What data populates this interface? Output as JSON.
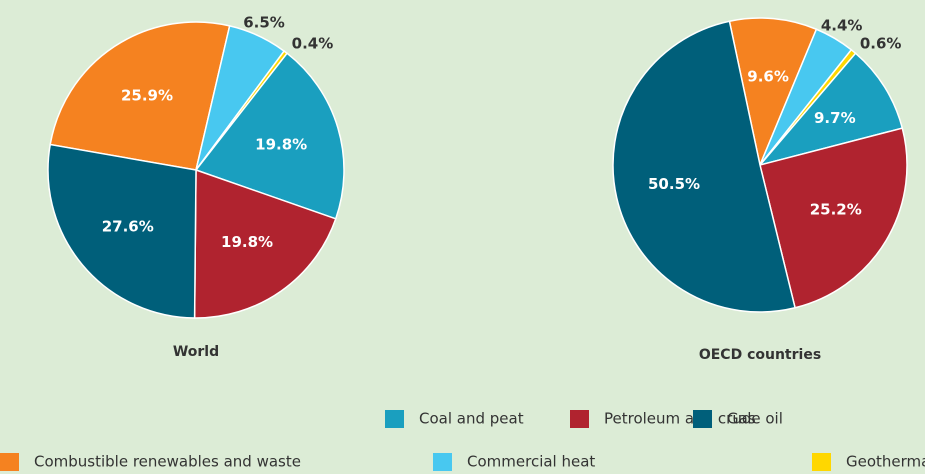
{
  "chart_data": [
    {
      "type": "pie",
      "title": "World",
      "categories": [
        "Coal and peat",
        "Petroleum and crude oil",
        "Gas",
        "Combustible renewables and waste",
        "Commercial heat",
        "Geothermal, solar, etc."
      ],
      "values": [
        19.8,
        19.8,
        27.6,
        25.9,
        6.5,
        0.4
      ],
      "value_labels": [
        "19.8%",
        "19.8%",
        "27.6%",
        "25.9%",
        "6.5%",
        "0.4%"
      ],
      "colors": [
        "#1a9fbf",
        "#b0232f",
        "#005f7a",
        "#f58220",
        "#48c8f0",
        "#ffd700"
      ]
    },
    {
      "type": "pie",
      "title": "OECD countries",
      "categories": [
        "Coal and peat",
        "Petroleum and crude oil",
        "Gas",
        "Combustible renewables and waste",
        "Commercial heat",
        "Geothermal, solar, etc."
      ],
      "values": [
        9.7,
        25.2,
        50.5,
        9.6,
        4.4,
        0.6
      ],
      "value_labels": [
        "9.7%",
        "25.2%",
        "50.5%",
        "9.6%",
        "4.4%",
        "0.6%"
      ],
      "colors": [
        "#1a9fbf",
        "#b0232f",
        "#005f7a",
        "#f58220",
        "#48c8f0",
        "#ffd700"
      ]
    }
  ]
}
